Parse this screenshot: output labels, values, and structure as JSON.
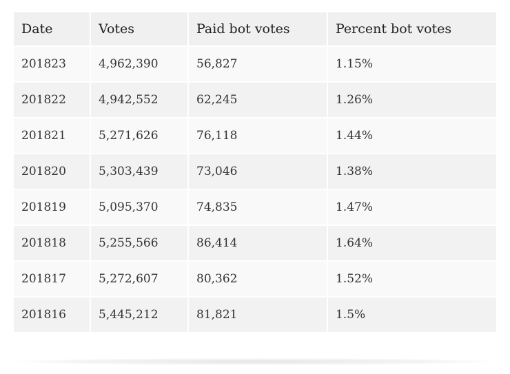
{
  "table": {
    "headers": [
      "Date",
      "Votes",
      "Paid bot votes",
      "Percent bot votes"
    ],
    "rows": [
      [
        "201823",
        "4,962,390",
        "56,827",
        "1.15%"
      ],
      [
        "201822",
        "4,942,552",
        "62,245",
        "1.26%"
      ],
      [
        "201821",
        "5,271,626",
        "76,118",
        "1.44%"
      ],
      [
        "201820",
        "5,303,439",
        "73,046",
        "1.38%"
      ],
      [
        "201819",
        "5,095,370",
        "74,835",
        "1.47%"
      ],
      [
        "201818",
        "5,255,566",
        "86,414",
        "1.64%"
      ],
      [
        "201817",
        "5,272,607",
        "80,362",
        "1.52%"
      ],
      [
        "201816",
        "5,445,212",
        "81,821",
        "1.5%"
      ]
    ]
  }
}
